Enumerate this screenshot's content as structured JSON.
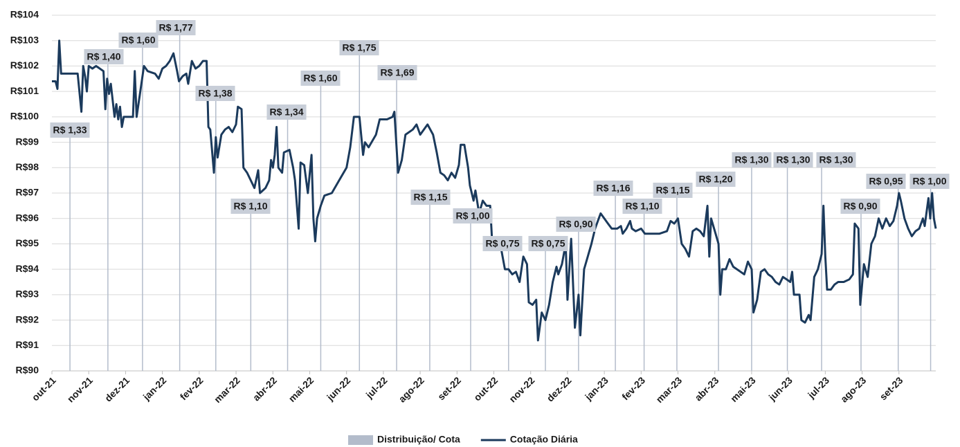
{
  "chart_data": {
    "type": "line",
    "xlim": [
      0,
      24
    ],
    "xticks": [
      {
        "value": 0,
        "label": "out-21"
      },
      {
        "value": 1,
        "label": "nov-21"
      },
      {
        "value": 2,
        "label": "dez-21"
      },
      {
        "value": 3,
        "label": "jan-22"
      },
      {
        "value": 4,
        "label": "fev-22"
      },
      {
        "value": 5,
        "label": "mar-22"
      },
      {
        "value": 6,
        "label": "abr-22"
      },
      {
        "value": 7,
        "label": "mai-22"
      },
      {
        "value": 8,
        "label": "jun-22"
      },
      {
        "value": 9,
        "label": "jul-22"
      },
      {
        "value": 10,
        "label": "ago-22"
      },
      {
        "value": 11,
        "label": "set-22"
      },
      {
        "value": 12,
        "label": "out-22"
      },
      {
        "value": 13,
        "label": "nov-22"
      },
      {
        "value": 14,
        "label": "dez-22"
      },
      {
        "value": 15,
        "label": "jan-23"
      },
      {
        "value": 16,
        "label": "fev-23"
      },
      {
        "value": 17,
        "label": "mar-23"
      },
      {
        "value": 18,
        "label": "abr-23"
      },
      {
        "value": 19,
        "label": "mai-23"
      },
      {
        "value": 20,
        "label": "jun-23"
      },
      {
        "value": 21,
        "label": "jul-23"
      },
      {
        "value": 22,
        "label": "ago-23"
      },
      {
        "value": 23,
        "label": "set-23"
      }
    ],
    "ylim": [
      90,
      104
    ],
    "yticks": [
      {
        "value": 90,
        "label": "R$90"
      },
      {
        "value": 91,
        "label": "R$91"
      },
      {
        "value": 92,
        "label": "R$92"
      },
      {
        "value": 93,
        "label": "R$93"
      },
      {
        "value": 94,
        "label": "R$94"
      },
      {
        "value": 95,
        "label": "R$95"
      },
      {
        "value": 96,
        "label": "R$96"
      },
      {
        "value": 97,
        "label": "R$97"
      },
      {
        "value": 98,
        "label": "R$98"
      },
      {
        "value": 99,
        "label": "R$99"
      },
      {
        "value": 100,
        "label": "R$100"
      },
      {
        "value": 101,
        "label": "R$101"
      },
      {
        "value": 102,
        "label": "R$102"
      },
      {
        "value": 103,
        "label": "R$103"
      },
      {
        "value": 104,
        "label": "R$104"
      }
    ],
    "grid": true,
    "legend": "bottom",
    "series": [
      {
        "name": "Distribuição/ Cota",
        "type": "bar",
        "color": "#b3bccb",
        "label_color": "#c8ced8",
        "x": [
          0.49,
          1.52,
          2.46,
          3.47,
          4.45,
          5.4,
          6.4,
          7.3,
          8.35,
          9.36,
          10.26,
          11.37,
          12.4,
          13.4,
          14.3,
          15.3,
          16.08,
          16.97,
          18.1,
          19.0,
          19.97,
          20.9,
          21.97,
          22.98,
          23.86
        ],
        "values": [
          1.33,
          1.4,
          1.6,
          1.77,
          1.38,
          1.1,
          1.34,
          1.6,
          1.75,
          1.69,
          1.15,
          1.0,
          0.75,
          0.75,
          0.9,
          1.16,
          1.1,
          1.15,
          1.2,
          1.3,
          1.3,
          1.3,
          0.9,
          0.95,
          1.0
        ],
        "value_labels": [
          "R$ 1,33",
          "R$ 1,40",
          "R$ 1,60",
          "R$ 1,77",
          "R$ 1,38",
          "R$ 1,10",
          "R$ 1,34",
          "R$ 1,60",
          "R$ 1,75",
          "R$ 1,69",
          "R$ 1,15",
          "R$ 1,00",
          "R$ 0,75",
          "R$ 0,75",
          "R$ 0,90",
          "R$ 1,16",
          "R$ 1,10",
          "R$ 1,15",
          "R$ 1,20",
          "R$ 1,30",
          "R$ 1,30",
          "R$ 1,30",
          "R$ 0,90",
          "R$ 0,95",
          "R$ 1,00"
        ]
      },
      {
        "name": "Cotação Diária",
        "type": "line",
        "color": "#1b3a5c",
        "x": [
          0,
          0.1,
          0.15,
          0.2,
          0.25,
          0.5,
          0.7,
          0.8,
          0.85,
          0.9,
          0.95,
          1.0,
          1.1,
          1.2,
          1.3,
          1.4,
          1.45,
          1.5,
          1.55,
          1.6,
          1.7,
          1.75,
          1.8,
          1.85,
          1.9,
          1.95,
          2.1,
          2.2,
          2.25,
          2.3,
          2.4,
          2.5,
          2.6,
          2.8,
          2.9,
          3.0,
          3.1,
          3.2,
          3.3,
          3.4,
          3.45,
          3.55,
          3.65,
          3.7,
          3.8,
          3.9,
          4.0,
          4.1,
          4.2,
          4.25,
          4.3,
          4.4,
          4.45,
          4.5,
          4.6,
          4.7,
          4.8,
          4.9,
          5.0,
          5.05,
          5.15,
          5.2,
          5.3,
          5.4,
          5.5,
          5.6,
          5.65,
          5.8,
          5.9,
          5.95,
          6.0,
          6.05,
          6.1,
          6.15,
          6.25,
          6.3,
          6.45,
          6.55,
          6.6,
          6.7,
          6.75,
          6.85,
          6.95,
          7.05,
          7.1,
          7.15,
          7.2,
          7.3,
          7.4,
          7.6,
          7.8,
          8.0,
          8.1,
          8.2,
          8.35,
          8.45,
          8.5,
          8.6,
          8.8,
          8.9,
          9.1,
          9.25,
          9.3,
          9.4,
          9.5,
          9.6,
          9.8,
          9.9,
          10.0,
          10.1,
          10.2,
          10.35,
          10.45,
          10.55,
          10.65,
          10.75,
          10.85,
          10.95,
          11.05,
          11.1,
          11.2,
          11.3,
          11.35,
          11.45,
          11.5,
          11.6,
          11.7,
          11.8,
          11.9,
          11.95,
          12.05,
          12.2,
          12.3,
          12.4,
          12.5,
          12.6,
          12.7,
          12.8,
          12.9,
          12.95,
          13.05,
          13.15,
          13.2,
          13.3,
          13.4,
          13.5,
          13.6,
          13.7,
          13.75,
          13.85,
          13.95,
          14.0,
          14.1,
          14.2,
          14.3,
          14.35,
          14.45,
          14.55,
          14.65,
          14.75,
          14.85,
          14.9,
          15.0,
          15.1,
          15.2,
          15.35,
          15.45,
          15.5,
          15.6,
          15.7,
          15.75,
          15.85,
          16.0,
          16.1,
          16.3,
          16.5,
          16.7,
          16.8,
          16.9,
          17.0,
          17.1,
          17.2,
          17.3,
          17.4,
          17.5,
          17.6,
          17.7,
          17.8,
          17.85,
          17.9,
          18.0,
          18.1,
          18.15,
          18.2,
          18.3,
          18.4,
          18.5,
          18.6,
          18.7,
          18.8,
          18.9,
          19.0,
          19.05,
          19.15,
          19.25,
          19.35,
          19.45,
          19.55,
          19.65,
          19.75,
          19.85,
          19.95,
          20.05,
          20.1,
          20.15,
          20.3,
          20.35,
          20.45,
          20.55,
          20.6,
          20.7,
          20.8,
          20.9,
          20.95,
          21.0,
          21.05,
          21.15,
          21.25,
          21.35,
          21.5,
          21.65,
          21.75,
          21.8,
          21.9,
          21.95,
          22.05,
          22.15,
          22.25,
          22.35,
          22.45,
          22.55,
          22.65,
          22.75,
          22.85,
          22.95,
          23.0,
          23.05,
          23.15,
          23.25,
          23.35,
          23.45,
          23.55,
          23.65,
          23.7,
          23.8,
          23.85,
          23.9,
          23.95,
          24.0
        ],
        "values": [
          101.4,
          101.4,
          101.1,
          103.0,
          101.7,
          101.7,
          101.7,
          100.2,
          102.0,
          101.6,
          101.0,
          102.0,
          101.9,
          102.0,
          101.9,
          101.8,
          100.3,
          101.5,
          100.9,
          101.3,
          100.0,
          100.5,
          99.9,
          100.4,
          99.6,
          100.0,
          100.0,
          100.0,
          101.8,
          100.0,
          101.0,
          102.0,
          101.8,
          101.7,
          101.5,
          101.9,
          102.0,
          102.2,
          102.5,
          101.8,
          101.4,
          101.6,
          101.7,
          101.3,
          102.2,
          101.9,
          102.0,
          102.2,
          102.2,
          99.6,
          99.5,
          97.8,
          99.2,
          98.4,
          99.3,
          99.5,
          99.6,
          99.4,
          99.7,
          100.4,
          100.3,
          98.0,
          97.8,
          97.5,
          97.2,
          97.9,
          97.0,
          97.2,
          97.5,
          98.3,
          98.0,
          98.5,
          99.6,
          98.0,
          97.8,
          98.6,
          98.7,
          98.0,
          97.5,
          95.6,
          98.2,
          98.1,
          97.0,
          98.5,
          96.0,
          95.1,
          96.0,
          96.5,
          96.9,
          97.0,
          97.5,
          98.0,
          98.8,
          100.0,
          100.0,
          98.5,
          99.0,
          98.8,
          99.3,
          99.9,
          99.9,
          100.0,
          100.2,
          97.8,
          98.3,
          99.3,
          99.5,
          99.7,
          99.3,
          99.5,
          99.7,
          99.3,
          98.6,
          97.8,
          97.7,
          97.5,
          97.8,
          97.6,
          98.1,
          98.9,
          98.9,
          98.0,
          97.3,
          96.7,
          97.1,
          96.2,
          96.7,
          96.5,
          96.5,
          95.2,
          95.1,
          94.8,
          94.0,
          94.0,
          93.8,
          93.9,
          93.5,
          94.5,
          94.2,
          92.7,
          92.6,
          92.8,
          91.2,
          92.3,
          92.0,
          92.6,
          93.5,
          94.1,
          93.8,
          94.2,
          95.0,
          92.8,
          95.2,
          91.7,
          93.0,
          91.4,
          94.0,
          94.5,
          95.0,
          95.6,
          96.0,
          96.2,
          96.0,
          95.8,
          95.6,
          95.6,
          95.7,
          95.4,
          95.6,
          95.9,
          95.6,
          95.5,
          95.6,
          95.4,
          95.4,
          95.4,
          95.5,
          95.9,
          95.8,
          96.0,
          95.0,
          94.8,
          94.5,
          95.5,
          95.6,
          95.5,
          95.3,
          96.5,
          94.5,
          96.0,
          95.5,
          95.0,
          93.0,
          94.0,
          94.0,
          94.4,
          94.1,
          94.0,
          93.9,
          93.8,
          94.3,
          94.0,
          92.3,
          92.8,
          93.9,
          94.0,
          93.8,
          93.7,
          93.5,
          93.4,
          93.7,
          93.6,
          93.5,
          93.9,
          93.0,
          93.0,
          92.0,
          91.9,
          92.2,
          92.0,
          93.7,
          94.0,
          94.6,
          96.5,
          94.5,
          93.2,
          93.2,
          93.4,
          93.5,
          93.5,
          93.6,
          93.8,
          95.8,
          95.6,
          92.6,
          94.2,
          93.7,
          95.0,
          95.3,
          96.0,
          95.6,
          96.0,
          95.7,
          95.9,
          96.5,
          97.0,
          96.7,
          96.0,
          95.6,
          95.3,
          95.5,
          95.6,
          96.0,
          95.7,
          96.8,
          96.0,
          97.0,
          96.0,
          95.6
        ]
      }
    ]
  }
}
